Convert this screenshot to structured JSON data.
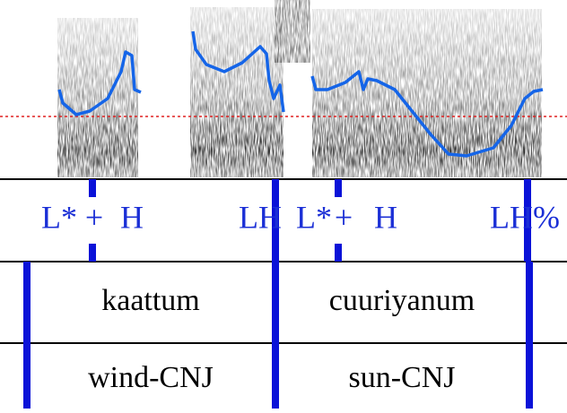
{
  "tones": [
    "L*",
    "+",
    "H",
    "LH",
    "L*",
    "+",
    "H",
    "LH%"
  ],
  "words": [
    "kaattum",
    "cuuriyanum"
  ],
  "glosses": [
    "wind-CNJ",
    "sun-CNJ"
  ]
}
